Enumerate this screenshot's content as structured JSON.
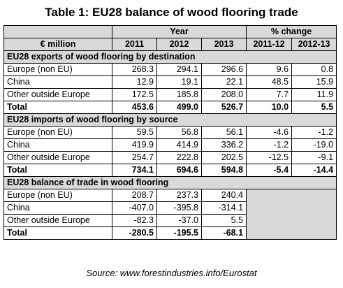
{
  "title": "Table 1: EU28 balance of wood flooring trade",
  "header": {
    "year_label": "Year",
    "change_label": "% change",
    "unit_label": "€ million",
    "years": [
      "2011",
      "2012",
      "2013"
    ],
    "changes": [
      "2011-12",
      "2012-13"
    ]
  },
  "sections": [
    {
      "title": "EU28 exports of wood flooring by destination",
      "rows": [
        {
          "label": "Europe (non EU)",
          "values": [
            "268.3",
            "294.1",
            "296.6"
          ],
          "changes": [
            "9.6",
            "0.8"
          ]
        },
        {
          "label": "China",
          "values": [
            "12.9",
            "19.1",
            "22.1"
          ],
          "changes": [
            "48.5",
            "15.9"
          ]
        },
        {
          "label": "Other outside Europe",
          "values": [
            "172.5",
            "185.8",
            "208.0"
          ],
          "changes": [
            "7.7",
            "11.9"
          ]
        },
        {
          "label": "Total",
          "values": [
            "453.6",
            "499.0",
            "526.7"
          ],
          "changes": [
            "10.0",
            "5.5"
          ]
        }
      ]
    },
    {
      "title": "EU28 imports of wood flooring by source",
      "rows": [
        {
          "label": "Europe (non EU)",
          "values": [
            "59.5",
            "56.8",
            "56.1"
          ],
          "changes": [
            "-4.6",
            "-1.2"
          ]
        },
        {
          "label": "China",
          "values": [
            "419.9",
            "414.9",
            "336.2"
          ],
          "changes": [
            "-1.2",
            "-19.0"
          ]
        },
        {
          "label": "Other outside Europe",
          "values": [
            "254.7",
            "222.8",
            "202.5"
          ],
          "changes": [
            "-12.5",
            "-9.1"
          ]
        },
        {
          "label": "Total",
          "values": [
            "734.1",
            "694.6",
            "594.8"
          ],
          "changes": [
            "-5.4",
            "-14.4"
          ]
        }
      ]
    },
    {
      "title": "EU28 balance of trade in wood flooring",
      "rows": [
        {
          "label": "Europe (non EU)",
          "values": [
            "208.7",
            "237.3",
            "240.4"
          ],
          "changes": []
        },
        {
          "label": "China",
          "values": [
            "-407.0",
            "-395.8",
            "-314.1"
          ],
          "changes": []
        },
        {
          "label": "Other outside Europe",
          "values": [
            "-82.3",
            "-37.0",
            "5.5"
          ],
          "changes": []
        },
        {
          "label": "Total",
          "values": [
            "-280.5",
            "-195.5",
            "-68.1"
          ],
          "changes": []
        }
      ]
    }
  ],
  "source": "Source: www.forestindustries.info/Eurostat"
}
